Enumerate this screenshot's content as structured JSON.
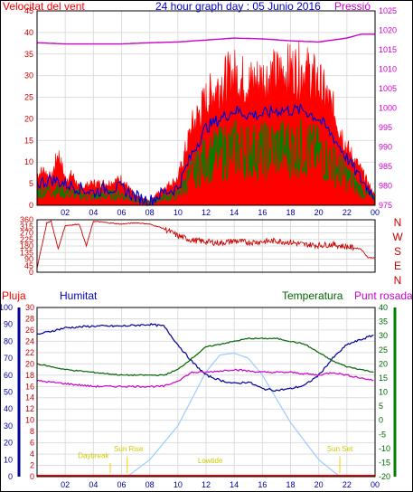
{
  "header": {
    "wind_label": "Velocitat del vent",
    "title": "24 hour graph day : 05 Junio 2016",
    "pressure_label": "Pressió"
  },
  "lower_header": {
    "rain_label": "Pluja",
    "humidity_label": "Humitat",
    "temperature_label": "Temperatura",
    "dewpoint_label": "Punt rosada"
  },
  "direction_labels": [
    "N",
    "W",
    "S",
    "E",
    "N"
  ],
  "sun_labels": {
    "daybreak": "Daybreak",
    "sunrise": "Sun Rise",
    "lowtide": "Lowtide",
    "sunset": "Sun Set"
  },
  "colors": {
    "wind": "#ff0000",
    "wind_avg": "#0000cc",
    "gust_low": "#008000",
    "pressure": "#cc00cc",
    "humidity": "#000099",
    "temperature": "#006600",
    "dewpoint": "#cc00cc",
    "solar": "#99ccff",
    "daylight_marker": "#ffcc00"
  },
  "chart_data": [
    {
      "type": "line",
      "name_ref": "wind-pressure",
      "x_ticks": [
        "02",
        "04",
        "06",
        "08",
        "10",
        "12",
        "14",
        "16",
        "18",
        "20",
        "22",
        "00"
      ],
      "ylim_left": [
        0,
        45
      ],
      "yticks_left": [
        0,
        5,
        10,
        15,
        20,
        25,
        30,
        35,
        40,
        45
      ],
      "ylim_right": [
        975,
        1025
      ],
      "yticks_right": [
        975,
        980,
        985,
        990,
        995,
        1000,
        1005,
        1010,
        1015,
        1020,
        1025
      ],
      "series": [
        {
          "axis": "left",
          "hours": [
            0,
            0.5,
            1,
            1.5,
            2,
            2.5,
            3,
            4,
            5,
            6,
            7,
            8,
            9,
            10,
            11,
            12,
            13,
            14,
            15,
            16,
            17,
            18,
            19,
            20,
            21,
            21.5,
            22,
            23,
            24
          ],
          "values": [
            7,
            8,
            6,
            12,
            6,
            7,
            4,
            5,
            5,
            6,
            2,
            1,
            4,
            6,
            18,
            24,
            28,
            30,
            28,
            29,
            30,
            31,
            31,
            28,
            22,
            18,
            13,
            8,
            2
          ]
        },
        {
          "axis": "left",
          "hours": [
            0,
            1,
            2,
            3,
            4,
            5,
            6,
            7,
            8,
            9,
            10,
            11,
            12,
            13,
            14,
            15,
            16,
            17,
            18,
            19,
            20,
            21,
            22,
            23,
            24
          ],
          "values": [
            5,
            6,
            5,
            4,
            3,
            4,
            4,
            2,
            1,
            3,
            4,
            12,
            18,
            20,
            22,
            21,
            21,
            22,
            22,
            22,
            20,
            16,
            11,
            6,
            2
          ]
        },
        {
          "axis": "right",
          "hours": [
            0,
            2,
            4,
            6,
            8,
            10,
            12,
            14,
            16,
            18,
            20,
            22,
            23,
            24
          ],
          "values": [
            1016.8,
            1016.5,
            1016.5,
            1016.5,
            1016.8,
            1017,
            1017.5,
            1018,
            1017.8,
            1017.3,
            1017,
            1018,
            1019,
            1019
          ]
        }
      ]
    },
    {
      "type": "line",
      "name_ref": "wind-direction",
      "ylim": [
        0,
        360
      ],
      "yticks": [
        0,
        45,
        90,
        135,
        180,
        225,
        270,
        315,
        360
      ],
      "series": [
        {
          "hours": [
            0,
            0.7,
            1,
            1.5,
            2,
            3,
            3.5,
            4,
            5,
            6,
            7,
            8,
            9,
            10,
            11,
            12,
            13,
            14,
            15,
            16,
            17,
            18,
            19,
            20,
            21,
            22,
            23,
            23.5,
            24
          ],
          "values": [
            30,
            340,
            350,
            160,
            320,
            330,
            180,
            350,
            340,
            330,
            340,
            330,
            300,
            250,
            220,
            210,
            200,
            215,
            205,
            210,
            215,
            205,
            190,
            185,
            190,
            175,
            160,
            100,
            100
          ]
        }
      ]
    },
    {
      "type": "line",
      "name_ref": "rain-humidity-temperature",
      "ylim_humidity": [
        0,
        100
      ],
      "yticks_humidity": [
        0,
        10,
        20,
        30,
        40,
        50,
        60,
        70,
        80,
        90,
        100
      ],
      "ylim_rain": [
        0,
        30
      ],
      "yticks_rain": [
        0,
        2,
        4,
        6,
        8,
        10,
        12,
        14,
        16,
        18,
        20,
        22,
        24,
        26,
        28,
        30
      ],
      "ylim_temp": [
        -20,
        40
      ],
      "yticks_temp": [
        -20,
        -15,
        -10,
        -5,
        0,
        5,
        10,
        15,
        20,
        25,
        30,
        35,
        40
      ],
      "series": [
        {
          "hours": [
            0,
            1,
            2,
            4,
            6,
            8,
            9,
            10,
            11,
            12,
            13,
            14,
            15,
            16,
            17,
            18,
            19,
            20,
            21,
            22,
            23,
            24
          ],
          "values": [
            84,
            86,
            88,
            89,
            89,
            90,
            89,
            78,
            68,
            60,
            57,
            55,
            56,
            52,
            51,
            52,
            54,
            60,
            70,
            78,
            81,
            84
          ]
        },
        {
          "hours": [
            0,
            2,
            4,
            6,
            7,
            8,
            9,
            10,
            11,
            12,
            13,
            14,
            15,
            16,
            17,
            18,
            19,
            20,
            21,
            22,
            23,
            24
          ],
          "values": [
            20,
            18,
            17,
            16,
            16,
            16,
            16,
            18,
            22,
            26,
            27,
            28,
            29,
            29,
            29,
            28,
            27,
            24,
            21,
            19,
            18,
            17
          ]
        },
        {
          "hours": [
            0,
            2,
            4,
            6,
            8,
            9,
            10,
            11,
            12,
            14,
            16,
            18,
            20,
            21,
            22,
            23,
            24
          ],
          "values": [
            14,
            13,
            12,
            12,
            12,
            12,
            14,
            17,
            17,
            18,
            17,
            17,
            16,
            17,
            16,
            15,
            14
          ]
        },
        {
          "hours": [
            6.4,
            8,
            10,
            12,
            13,
            14,
            15,
            16,
            18,
            20,
            21.5
          ],
          "values": [
            0,
            10,
            30,
            62,
            72,
            73,
            70,
            60,
            32,
            10,
            0
          ]
        }
      ],
      "annotations": [
        {
          "hour": 6.4,
          "label": "sunrise"
        },
        {
          "hour": 21.5,
          "label": "sunset"
        }
      ]
    }
  ]
}
